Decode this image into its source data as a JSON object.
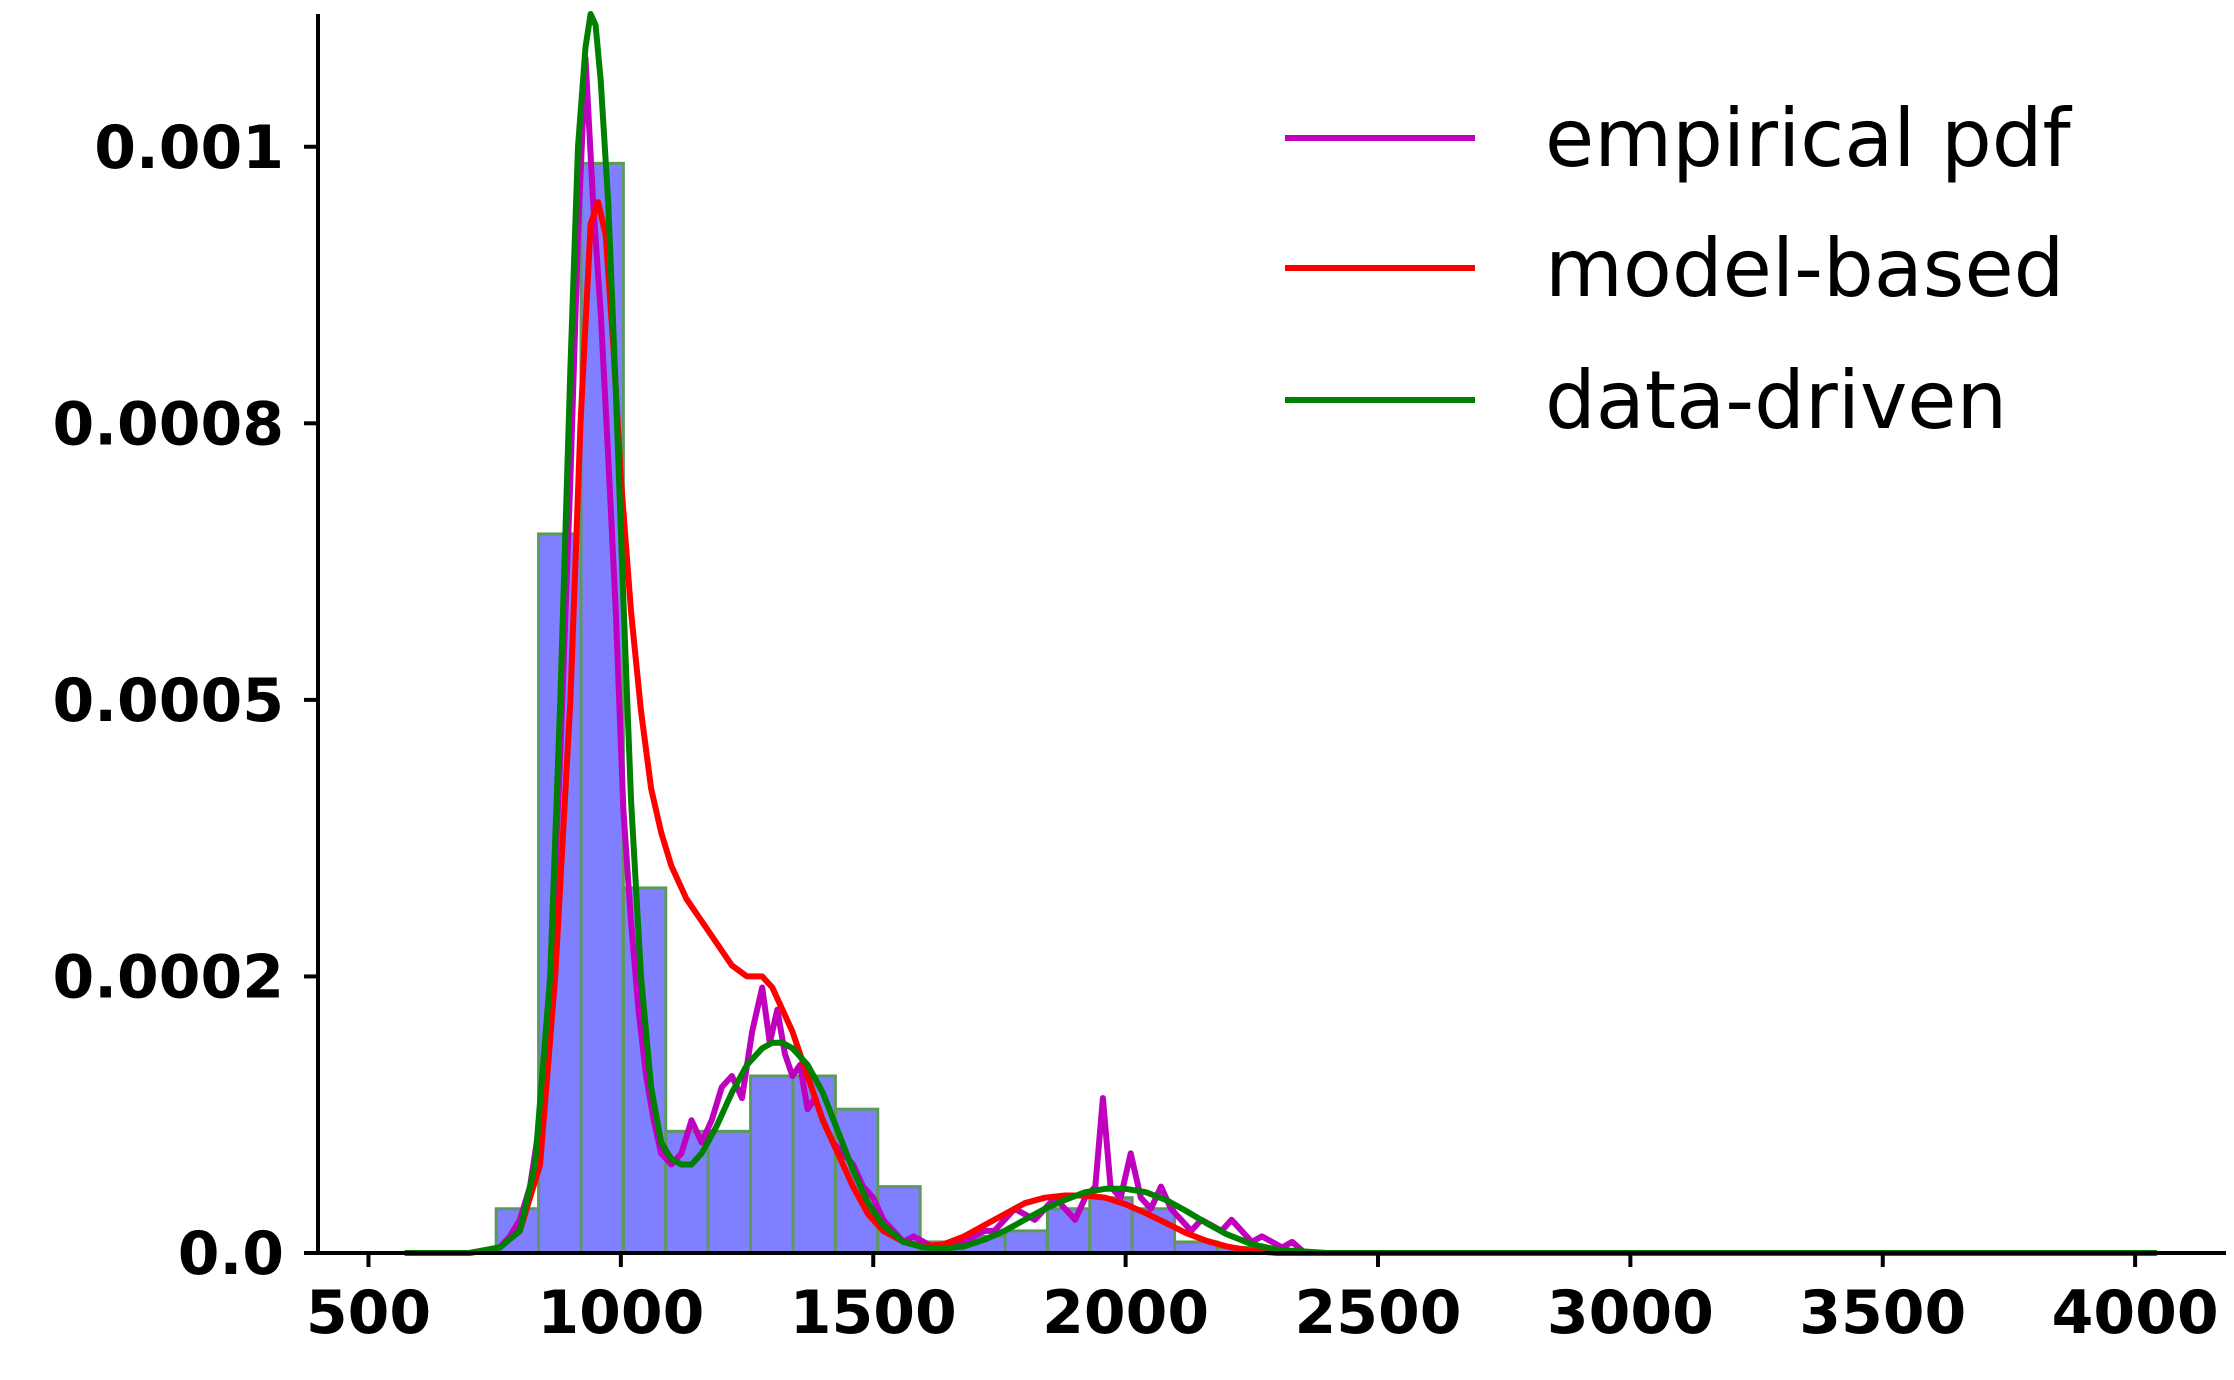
{
  "chart_data": {
    "type": "histogram",
    "title": "",
    "xlabel": "",
    "ylabel": "",
    "xlim": [
      400,
      4180
    ],
    "ylim": [
      0,
      0.00112
    ],
    "x_ticks": [
      {
        "value": 500,
        "label": "500"
      },
      {
        "value": 1000,
        "label": "1000"
      },
      {
        "value": 1500,
        "label": "1500"
      },
      {
        "value": 2000,
        "label": "2000"
      },
      {
        "value": 2500,
        "label": "2500"
      },
      {
        "value": 3000,
        "label": "3000"
      },
      {
        "value": 3500,
        "label": "3500"
      },
      {
        "value": 4000,
        "label": "4000"
      }
    ],
    "y_ticks": [
      {
        "value": 0.0,
        "label": "0.0"
      },
      {
        "value": 0.00025,
        "label": "0.0002"
      },
      {
        "value": 0.0005,
        "label": "0.0005"
      },
      {
        "value": 0.00075,
        "label": "0.0008"
      },
      {
        "value": 0.001,
        "label": "0.001"
      }
    ],
    "grid": false,
    "legend_position": "top-right",
    "histogram": {
      "color": "#7f7fff",
      "edge_color": "#5c9a5c",
      "bin_edges": [
        753,
        837,
        921,
        1005,
        1089,
        1173,
        1257,
        1341,
        1425,
        1509,
        1593,
        1677,
        1761,
        1845,
        1929,
        2013,
        2097,
        2181,
        2265,
        2349
      ],
      "counts": [
        4e-05,
        0.00065,
        0.000985,
        0.00033,
        0.00011,
        0.00011,
        0.00016,
        0.00016,
        0.00013,
        6e-05,
        1e-05,
        1.5e-05,
        2e-05,
        4e-05,
        5e-05,
        4e-05,
        1e-05,
        5e-06,
        2e-06
      ]
    },
    "series": [
      {
        "name": "empirical pdf",
        "color": "#bf00bf",
        "x": [
          760,
          780,
          800,
          820,
          840,
          860,
          880,
          900,
          915,
          930,
          945,
          960,
          975,
          990,
          1005,
          1020,
          1035,
          1050,
          1065,
          1080,
          1100,
          1120,
          1140,
          1160,
          1180,
          1200,
          1220,
          1240,
          1260,
          1280,
          1295,
          1310,
          1325,
          1340,
          1355,
          1370,
          1385,
          1400,
          1420,
          1440,
          1460,
          1480,
          1500,
          1520,
          1540,
          1560,
          1580,
          1600,
          1620,
          1640,
          1660,
          1680,
          1700,
          1720,
          1740,
          1760,
          1780,
          1800,
          1820,
          1840,
          1860,
          1880,
          1900,
          1920,
          1940,
          1955,
          1970,
          1990,
          2010,
          2030,
          2050,
          2070,
          2090,
          2110,
          2130,
          2150,
          2170,
          2190,
          2210,
          2230,
          2250,
          2270,
          2290,
          2310,
          2330,
          2350,
          2365
        ],
        "y": [
          5e-06,
          1.5e-05,
          3e-05,
          6e-05,
          0.00012,
          0.00025,
          0.00045,
          0.0007,
          0.00092,
          0.00108,
          0.00095,
          0.00085,
          0.00072,
          0.00058,
          0.0004,
          0.0003,
          0.00022,
          0.00016,
          0.00012,
          9e-05,
          8e-05,
          9e-05,
          0.00012,
          0.0001,
          0.00012,
          0.00015,
          0.00016,
          0.00014,
          0.0002,
          0.00024,
          0.00019,
          0.00022,
          0.00018,
          0.00016,
          0.00017,
          0.00013,
          0.00014,
          0.00012,
          0.0001,
          9e-05,
          8e-05,
          6e-05,
          5e-05,
          3e-05,
          2e-05,
          1e-05,
          1.5e-05,
          1e-05,
          5e-06,
          8e-06,
          1e-05,
          1e-05,
          1.5e-05,
          2e-05,
          2e-05,
          3e-05,
          4e-05,
          3.5e-05,
          3e-05,
          4e-05,
          5e-05,
          4e-05,
          3e-05,
          5e-05,
          6e-05,
          0.00014,
          6e-05,
          5e-05,
          9e-05,
          5e-05,
          4e-05,
          6e-05,
          4e-05,
          3e-05,
          2e-05,
          3e-05,
          2.5e-05,
          2e-05,
          3e-05,
          2e-05,
          1e-05,
          1.5e-05,
          1e-05,
          5e-06,
          1e-05,
          2e-06,
          0.0
        ]
      },
      {
        "name": "model-based",
        "color": "#ff0000",
        "x": [
          575,
          700,
          760,
          800,
          840,
          870,
          900,
          920,
          940,
          955,
          970,
          985,
          1000,
          1020,
          1040,
          1060,
          1080,
          1100,
          1130,
          1160,
          1190,
          1220,
          1250,
          1280,
          1300,
          1320,
          1340,
          1370,
          1400,
          1430,
          1460,
          1490,
          1520,
          1560,
          1600,
          1640,
          1680,
          1720,
          1760,
          1800,
          1840,
          1880,
          1920,
          1960,
          2000,
          2040,
          2080,
          2120,
          2160,
          2200,
          2250,
          2300,
          2400,
          2600,
          3000,
          3500,
          4040
        ],
        "y": [
          0.0,
          0.0,
          5e-06,
          2e-05,
          8e-05,
          0.00025,
          0.0005,
          0.00075,
          0.00093,
          0.00095,
          0.00092,
          0.00082,
          0.0007,
          0.00058,
          0.00049,
          0.00042,
          0.00038,
          0.00035,
          0.00032,
          0.0003,
          0.00028,
          0.00026,
          0.00025,
          0.00025,
          0.00024,
          0.00022,
          0.0002,
          0.00016,
          0.00012,
          9e-05,
          6e-05,
          3.5e-05,
          2e-05,
          1e-05,
          6e-06,
          8e-06,
          1.5e-05,
          2.5e-05,
          3.5e-05,
          4.5e-05,
          5e-05,
          5.2e-05,
          5.2e-05,
          5e-05,
          4.4e-05,
          3.6e-05,
          2.7e-05,
          1.8e-05,
          1.1e-05,
          6e-06,
          2e-06,
          0.0,
          0.0,
          0.0,
          0.0,
          0.0,
          0.0
        ]
      },
      {
        "name": "data-driven",
        "color": "#008000",
        "x": [
          575,
          700,
          760,
          800,
          830,
          860,
          880,
          900,
          915,
          930,
          940,
          950,
          960,
          975,
          990,
          1005,
          1020,
          1040,
          1060,
          1080,
          1100,
          1120,
          1140,
          1160,
          1190,
          1220,
          1250,
          1280,
          1300,
          1320,
          1340,
          1370,
          1400,
          1430,
          1460,
          1490,
          1520,
          1560,
          1600,
          1640,
          1680,
          1720,
          1760,
          1800,
          1840,
          1880,
          1920,
          1960,
          2000,
          2040,
          2080,
          2120,
          2160,
          2200,
          2250,
          2300,
          2400,
          2600,
          3000,
          3500,
          4040
        ],
        "y": [
          0.0,
          0.0,
          5e-06,
          2e-05,
          8e-05,
          0.00025,
          0.0005,
          0.0008,
          0.001,
          0.00109,
          0.00112,
          0.00111,
          0.00106,
          0.00095,
          0.00078,
          0.00059,
          0.00041,
          0.00025,
          0.00015,
          0.0001,
          8.5e-05,
          8e-05,
          8e-05,
          9e-05,
          0.000115,
          0.000145,
          0.00017,
          0.000185,
          0.00019,
          0.00019,
          0.000185,
          0.00017,
          0.000145,
          0.00011,
          7.5e-05,
          4.5e-05,
          2.5e-05,
          1e-05,
          5e-06,
          4e-06,
          6e-06,
          1.2e-05,
          2e-05,
          3e-05,
          4e-05,
          4.8e-05,
          5.5e-05,
          5.8e-05,
          5.8e-05,
          5.5e-05,
          4.8e-05,
          3.8e-05,
          2.7e-05,
          1.7e-05,
          8e-06,
          3e-06,
          0.0,
          0.0,
          0.0,
          0.0,
          0.0
        ]
      }
    ]
  }
}
